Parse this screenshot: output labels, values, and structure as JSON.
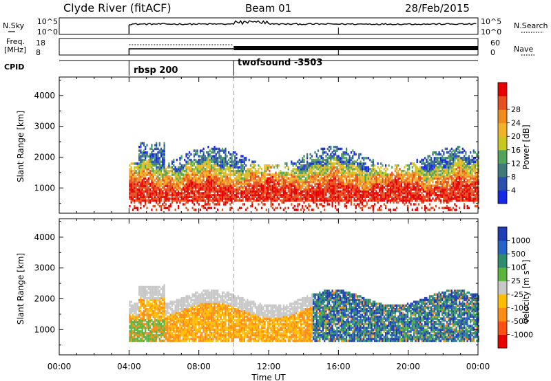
{
  "header": {
    "station": "Clyde River (fitACF)",
    "beam": "Beam 01",
    "date": "28/Feb/2015"
  },
  "top_panels": {
    "nsky_label": "N.Sky",
    "nsky_ticks": [
      "10^5",
      "10^0"
    ],
    "nsearch_label": "N.Search",
    "nsearch_ticks": [
      "10^5",
      "10^0"
    ],
    "freq_label_line1": "Freq.",
    "freq_label_line2": "[MHz]",
    "freq_ticks": [
      "18",
      "8"
    ],
    "nave_label": "Nave",
    "nave_ticks": [
      "60",
      "0"
    ],
    "cpid_label": "CPID",
    "cpid_modes": [
      {
        "name": "rbsp 200",
        "start_hour": 4
      },
      {
        "name": "twofsound -3503",
        "start_hour": 10
      }
    ]
  },
  "axes": {
    "x_title": "Time UT",
    "x_ticks": [
      "00:00",
      "04:00",
      "08:00",
      "12:00",
      "16:00",
      "20:00",
      "00:00"
    ],
    "y_title": "Slant Range [km]",
    "y_ticks": [
      "1000",
      "2000",
      "3000",
      "4000"
    ]
  },
  "power_colorbar": {
    "title": "Power [dB]",
    "labels": [
      "4",
      "8",
      "12",
      "16",
      "20",
      "24",
      "28"
    ],
    "colors": [
      "#1428e6",
      "#2c4fae",
      "#3f7a7a",
      "#52a45a",
      "#c8c81e",
      "#f0b428",
      "#f08c1e",
      "#e6501e",
      "#e60000"
    ]
  },
  "velocity_colorbar": {
    "title": "Velocity [m s⁻¹]",
    "labels": [
      "1000",
      "500",
      "100",
      "25",
      "-25",
      "-100",
      "-500",
      "-1000"
    ],
    "colors": [
      "#1e3cb4",
      "#2864c8",
      "#2d8c6e",
      "#5ab43c",
      "#c8c8c8",
      "#ffbe00",
      "#ff8c14",
      "#ff5014",
      "#e60000"
    ]
  },
  "chart_data": [
    {
      "type": "heatmap",
      "title": "Power [dB]",
      "xlabel": "Time UT",
      "ylabel": "Slant Range [km]",
      "xlim": [
        0,
        24
      ],
      "ylim": [
        180,
        4600
      ],
      "echo_bands": [
        {
          "t_start": 4.0,
          "t_end": 24.0,
          "range_low": 600,
          "range_high": 1400,
          "power": 28
        },
        {
          "t_start": 4.0,
          "t_end": 24.0,
          "range_low": 1200,
          "range_high": 2200,
          "power": 16
        },
        {
          "t_start": 4.0,
          "t_end": 24.0,
          "range_low": 1400,
          "range_high": 2400,
          "power": 8
        }
      ]
    },
    {
      "type": "heatmap",
      "title": "Velocity [m s⁻¹]",
      "xlabel": "Time UT",
      "ylabel": "Slant Range [km]",
      "xlim": [
        0,
        24
      ],
      "ylim": [
        180,
        4600
      ],
      "echo_bands": [
        {
          "t_start": 4.0,
          "t_end": 14.5,
          "range_low": 800,
          "range_high": 1800,
          "velocity": -300
        },
        {
          "t_start": 14.5,
          "t_end": 24.0,
          "range_low": 800,
          "range_high": 2300,
          "velocity": 500
        },
        {
          "t_start": 4.0,
          "t_end": 24.0,
          "range_low": 1600,
          "range_high": 2300,
          "velocity": 0
        }
      ]
    }
  ]
}
